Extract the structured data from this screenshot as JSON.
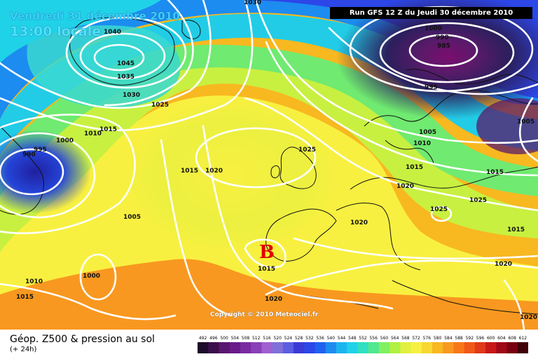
{
  "header": {
    "valid_date": "Vendredi 31 décembre 2010",
    "local_time": "13:00 locale",
    "run_info": "Run GFS 12 Z du Jeudi 30 décembre 2010"
  },
  "map": {
    "low_marker": "B",
    "copyright": "Copyright © 2010 Meteociel.fr",
    "isobar_labels": [
      "1030",
      "1040",
      "1045",
      "1035",
      "1030",
      "1025",
      "1015",
      "1010",
      "1000",
      "995",
      "990",
      "1005",
      "1000",
      "1010",
      "1015",
      "1015",
      "1020",
      "1025",
      "1015",
      "1020",
      "1025",
      "1015",
      "1020",
      "1000",
      "990",
      "985",
      "995",
      "1005",
      "1010",
      "1015",
      "1020",
      "1025",
      "1020",
      "1005",
      "1015",
      "1020"
    ]
  },
  "legend": {
    "title": "Géop. Z500 & pression au sol",
    "subtitle": "(+ 24h)",
    "scale": [
      "492",
      "496",
      "500",
      "504",
      "508",
      "512",
      "516",
      "520",
      "524",
      "528",
      "532",
      "536",
      "540",
      "544",
      "548",
      "552",
      "556",
      "560",
      "564",
      "568",
      "572",
      "576",
      "580",
      "584",
      "588",
      "592",
      "596",
      "600",
      "604",
      "608",
      "612"
    ],
    "scale_colors": [
      "#1e0a2a",
      "#3a0f4a",
      "#5a1670",
      "#6a1a8a",
      "#7a2aa0",
      "#8a40b8",
      "#a060d0",
      "#7f6fd8",
      "#5b5ee0",
      "#3a3ad8",
      "#2c46e8",
      "#2060f0",
      "#1c8cf0",
      "#1cb4f0",
      "#20d2e8",
      "#30e0c0",
      "#50e890",
      "#80f060",
      "#b0f040",
      "#e0f040",
      "#f8f040",
      "#f8d830",
      "#f8b820",
      "#f89820",
      "#f87818",
      "#f05818",
      "#e03818",
      "#c81818",
      "#a00818",
      "#780010",
      "#400008"
    ]
  }
}
